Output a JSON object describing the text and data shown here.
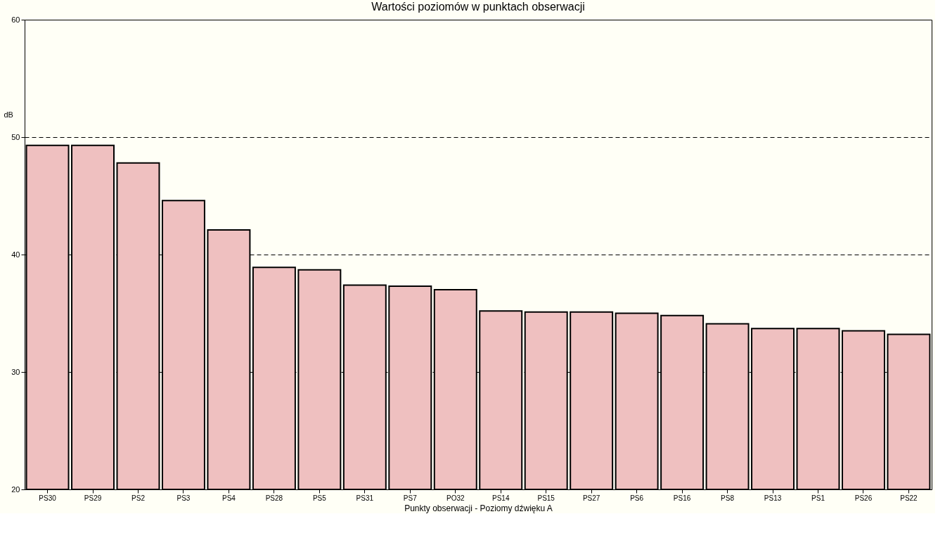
{
  "chart_data": {
    "type": "bar",
    "title": "Wartości poziomów w punktach obserwacji",
    "xlabel": "Punkty obserwacji - Poziomy dźwięku A",
    "ylabel": "dB",
    "categories": [
      "PS30",
      "PS29",
      "PS2",
      "PS3",
      "PS4",
      "PS28",
      "PS5",
      "PS31",
      "PS7",
      "PO32",
      "PS14",
      "PS15",
      "PS27",
      "PS6",
      "PS16",
      "PS8",
      "PS13",
      "PS1",
      "PS26",
      "PS22"
    ],
    "values": [
      49.3,
      49.3,
      47.8,
      44.6,
      42.1,
      38.9,
      38.7,
      37.4,
      37.3,
      37.0,
      35.2,
      35.1,
      35.1,
      35.0,
      34.8,
      34.1,
      33.7,
      33.7,
      33.5,
      33.2
    ],
    "color": "#efc0c0",
    "ylim": [
      20,
      60
    ],
    "yticks": [
      20,
      30,
      40,
      50,
      60
    ],
    "grid": "y"
  }
}
